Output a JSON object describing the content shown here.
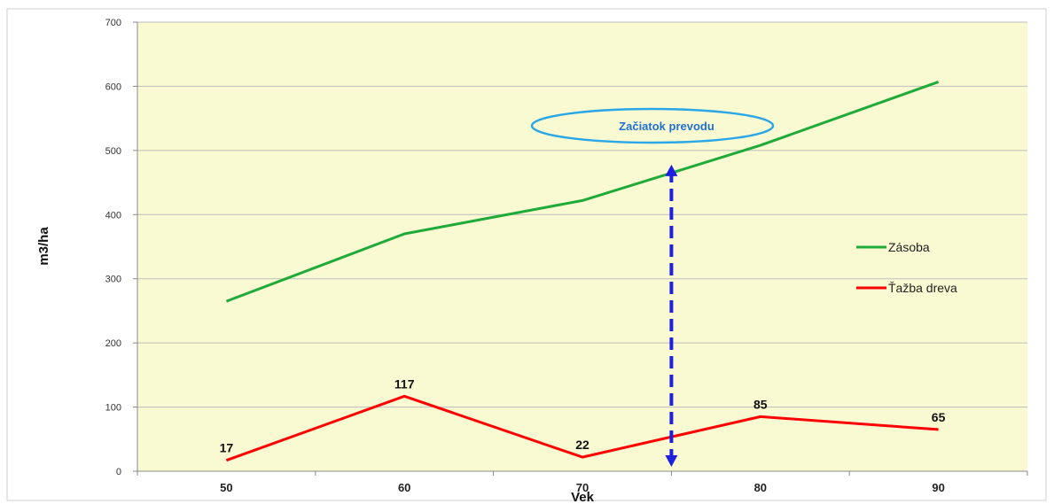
{
  "chart_data": {
    "type": "line",
    "title": "",
    "xlabel": "Vek",
    "ylabel": "m3/ha",
    "x": [
      50,
      60,
      70,
      80,
      90
    ],
    "xlim": [
      45,
      95
    ],
    "ylim": [
      0,
      700
    ],
    "yticks": [
      0,
      100,
      200,
      300,
      400,
      500,
      600,
      700
    ],
    "xticks": [
      50,
      60,
      70,
      80,
      90
    ],
    "grid": true,
    "legend_position": "right",
    "series": [
      {
        "name": "Zásoba",
        "color": "#1faa3a",
        "values": [
          265,
          370,
          422,
          508,
          607
        ],
        "data_labels": false
      },
      {
        "name": "Ťažba dreva",
        "color": "#ff0000",
        "values": [
          17,
          117,
          22,
          85,
          65
        ],
        "data_labels": true
      }
    ],
    "annotation": {
      "text": "Začiatok prevodu",
      "x": 75,
      "arrow_from": 0,
      "arrow_to": 500,
      "arrow_color": "#1f1fe0",
      "ellipse_color": "#2aa7e6"
    },
    "plot_background": "#fafad2"
  }
}
